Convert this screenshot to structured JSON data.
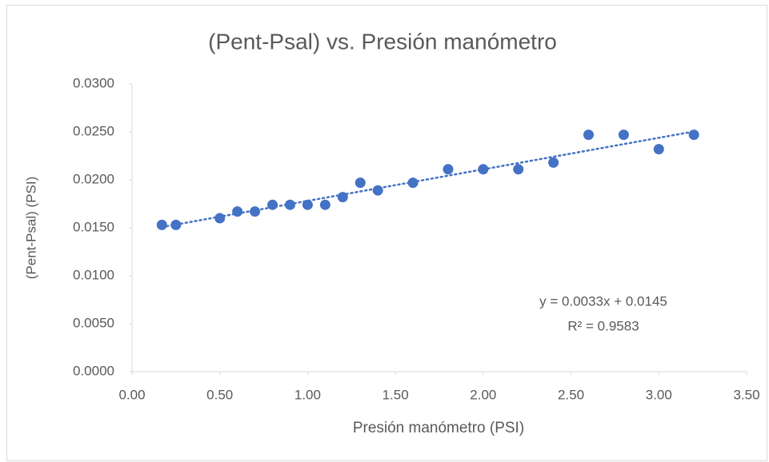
{
  "chart_data": {
    "type": "scatter",
    "title": "(Pent-Psal) vs. Presión manómetro",
    "x_label": "Presión manómetro (PSI)",
    "y_label": "(Pent-Psal)  (PSI)",
    "annotations": [
      "y = 0.0033x + 0.0145",
      "R² = 0.9583"
    ],
    "series": [
      {
        "color": "#4472c4",
        "x": [
          0.17,
          0.25,
          0.5,
          0.6,
          0.7,
          0.8,
          0.9,
          1.0,
          1.1,
          1.2,
          1.3,
          1.4,
          1.6,
          1.8,
          2.0,
          2.2,
          2.4,
          2.6,
          2.8,
          3.0,
          3.2
        ],
        "values": [
          0.0153,
          0.0153,
          0.016,
          0.0167,
          0.0167,
          0.0174,
          0.0174,
          0.0174,
          0.0174,
          0.0182,
          0.0197,
          0.0189,
          0.0197,
          0.0211,
          0.0211,
          0.0211,
          0.0218,
          0.0247,
          0.0247,
          0.0232,
          0.0247
        ]
      }
    ],
    "trendline": true,
    "xlim": [
      0,
      3.5
    ],
    "xticks": [
      {
        "value": 0,
        "label": "0.00"
      },
      {
        "value": 0.5,
        "label": "0.50"
      },
      {
        "value": 1,
        "label": "1.00"
      },
      {
        "value": 1.5,
        "label": "1.50"
      },
      {
        "value": 2,
        "label": "2.00"
      },
      {
        "value": 2.5,
        "label": "2.50"
      },
      {
        "value": 3,
        "label": "3.00"
      },
      {
        "value": 3.5,
        "label": "3.50"
      }
    ],
    "ylim": [
      0,
      0.03
    ],
    "yticks": [
      {
        "value": 0,
        "label": "0.0000"
      },
      {
        "value": 0.005,
        "label": "0.0050"
      },
      {
        "value": 0.01,
        "label": "0.0100"
      },
      {
        "value": 0.015,
        "label": "0.0150"
      },
      {
        "value": 0.02,
        "label": "0.0200"
      },
      {
        "value": 0.025,
        "label": "0.0250"
      },
      {
        "value": 0.03,
        "label": "0.0300"
      }
    ],
    "grid": false
  }
}
